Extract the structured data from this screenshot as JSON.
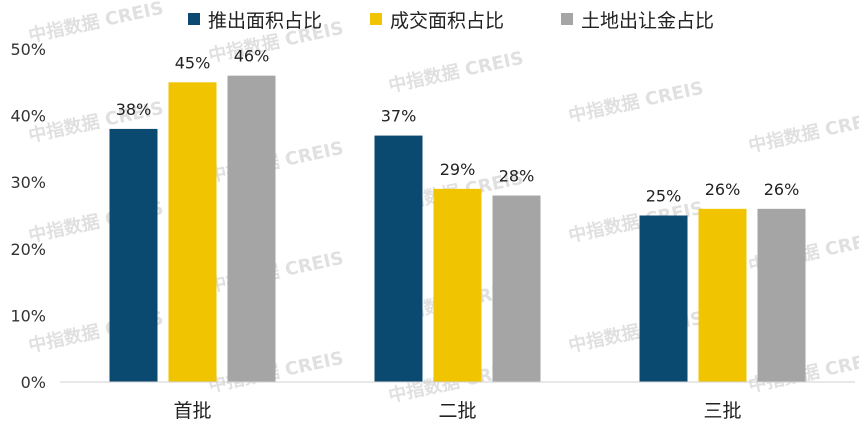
{
  "watermark": "中指数据 CREIS",
  "chart_data": {
    "type": "bar",
    "categories": [
      "首批",
      "二批",
      "三批"
    ],
    "series": [
      {
        "name": "推出面积占比",
        "color": "#0b4a70",
        "values": [
          38,
          37,
          25
        ],
        "labels": [
          "38%",
          "37%",
          "25%"
        ]
      },
      {
        "name": "成交面积占比",
        "color": "#f0c400",
        "values": [
          45,
          29,
          26
        ],
        "labels": [
          "45%",
          "29%",
          "26%"
        ]
      },
      {
        "name": "土地出让金占比",
        "color": "#a5a5a5",
        "values": [
          46,
          28,
          26
        ],
        "labels": [
          "46%",
          "28%",
          "26%"
        ]
      }
    ],
    "ylim": [
      0,
      50
    ],
    "yticks": [
      "0%",
      "10%",
      "20%",
      "30%",
      "40%",
      "50%"
    ],
    "legend_position": "top",
    "grid": false
  }
}
